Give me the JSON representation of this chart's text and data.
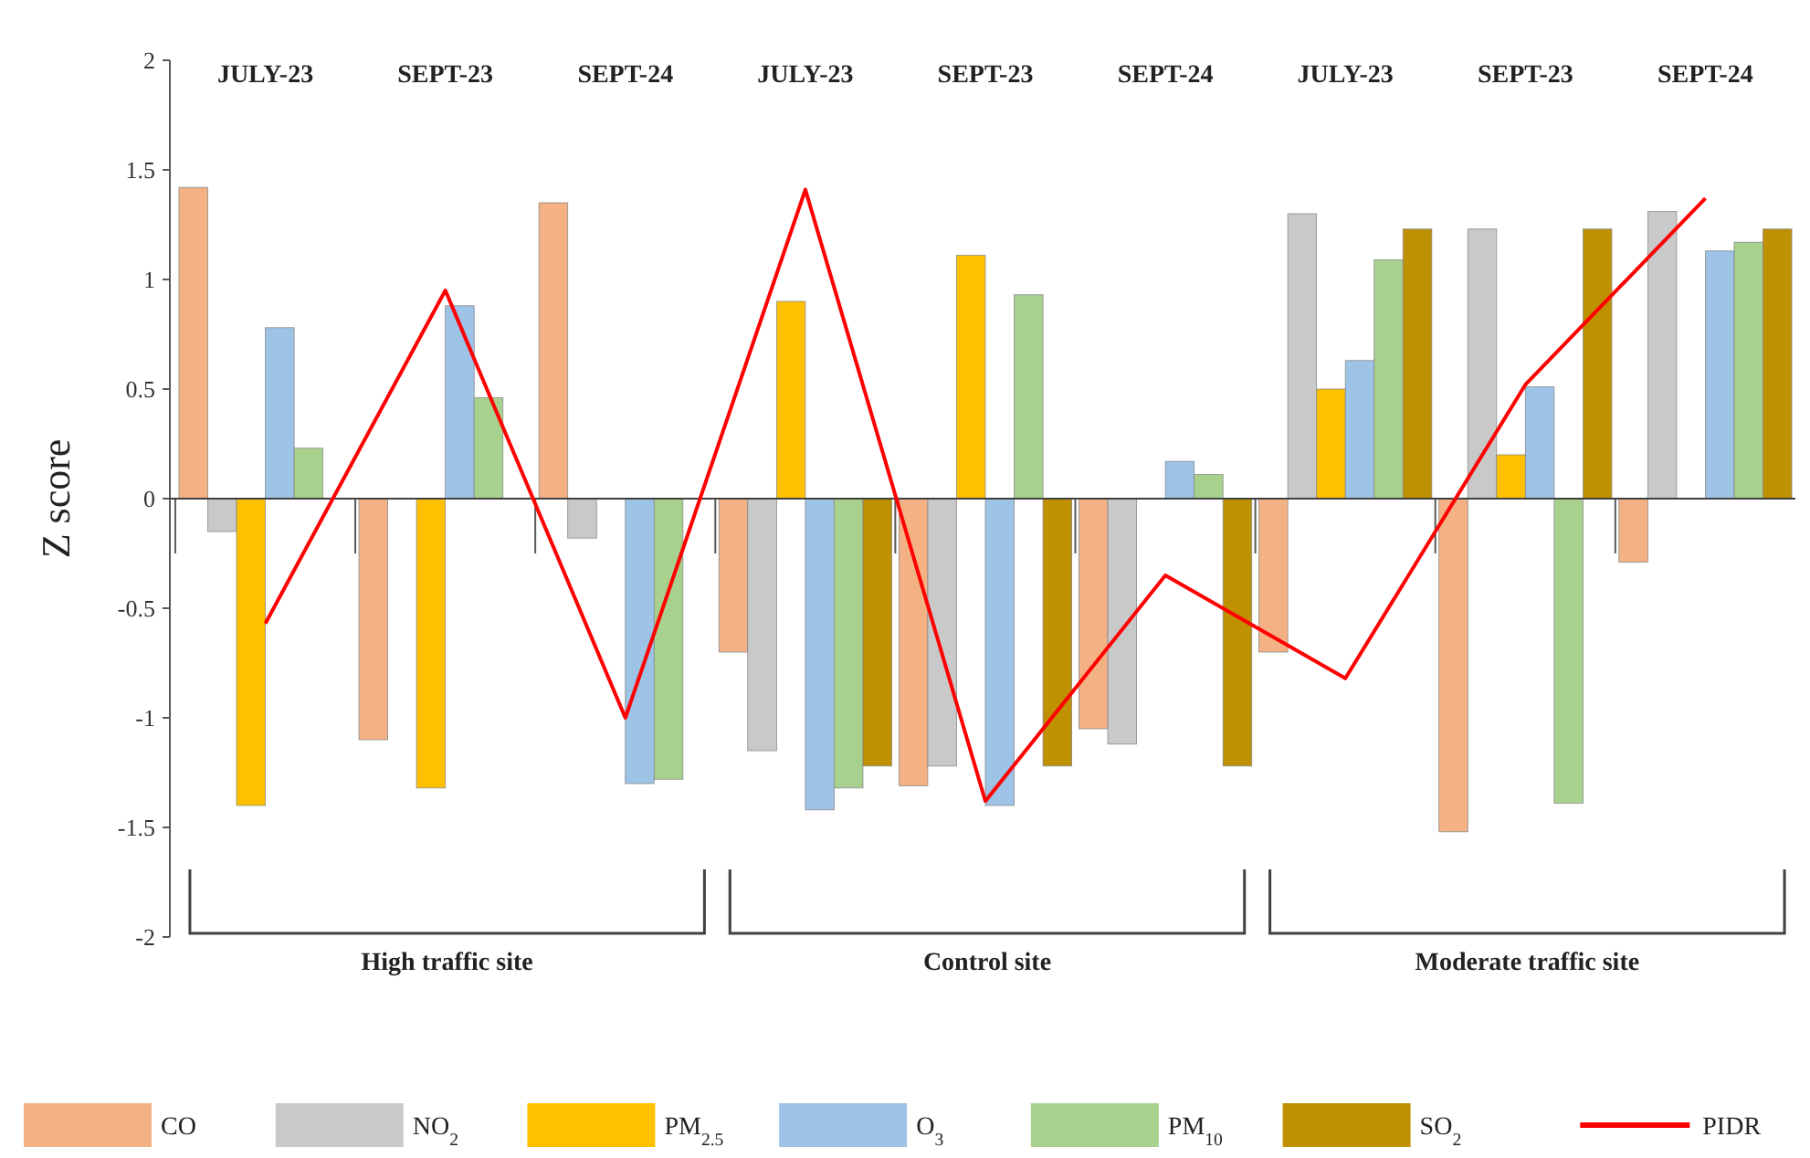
{
  "chart_data": {
    "type": "bar",
    "ylabel": "Z score",
    "categories": [
      "JULY-23",
      "SEPT-23",
      "SEPT-24",
      "JULY-23",
      "SEPT-23",
      "SEPT-24",
      "JULY-23",
      "SEPT-23",
      "SEPT-24"
    ],
    "series": [
      {
        "name": "CO",
        "color": "#f4b183",
        "values": [
          1.42,
          -1.1,
          1.35,
          -0.7,
          -1.31,
          -1.05,
          -0.7,
          -1.52,
          -0.29
        ]
      },
      {
        "name": "NO$_{2}$",
        "color": "#c9c9c9",
        "values": [
          -0.15,
          null,
          -0.18,
          -1.15,
          -1.22,
          -1.12,
          1.3,
          1.23,
          1.31
        ]
      },
      {
        "name": "PM$_{2.5}$",
        "color": "#ffc000",
        "values": [
          -1.4,
          -1.32,
          null,
          0.9,
          1.11,
          null,
          0.5,
          0.2,
          null
        ]
      },
      {
        "name": "O$_{3}$",
        "color": "#9dc3e6",
        "values": [
          0.78,
          0.88,
          -1.3,
          -1.42,
          -1.4,
          0.17,
          0.63,
          0.51,
          1.13
        ]
      },
      {
        "name": "PM$_{10}$",
        "color": "#a9d18e",
        "values": [
          0.23,
          0.46,
          -1.28,
          -1.32,
          0.93,
          0.11,
          1.09,
          -1.39,
          1.17
        ]
      },
      {
        "name": "SO$_{2}$",
        "color": "#bf9000",
        "values": [
          null,
          null,
          null,
          -1.22,
          -1.22,
          -1.22,
          1.23,
          1.23,
          1.23
        ]
      },
      {
        "name": "PIDR",
        "type": "line",
        "color": "#ff0000",
        "values": [
          -0.57,
          0.95,
          -1.0,
          1.41,
          -1.38,
          -0.35,
          -0.82,
          0.52,
          1.37
        ]
      }
    ],
    "ylim": [
      -2,
      2
    ],
    "yticks": [
      -2,
      -1.5,
      -1,
      -0.5,
      0,
      0.5,
      1,
      1.5,
      2
    ],
    "legend": "bottom",
    "marker": "none",
    "annotations": [
      "High traffic site",
      "Control site",
      "Moderate traffic site"
    ]
  }
}
